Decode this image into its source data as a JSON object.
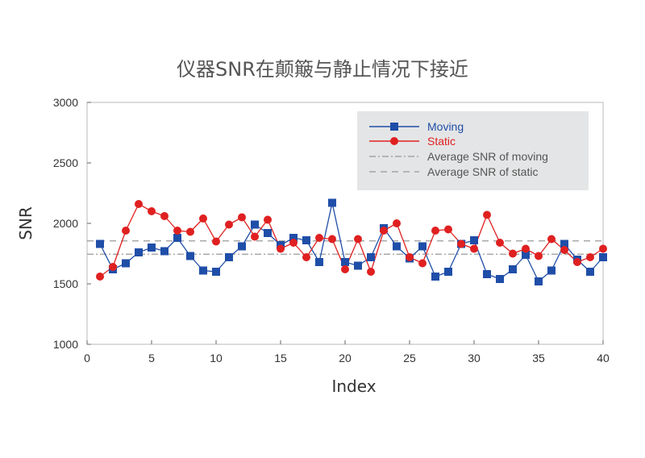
{
  "chart_data": {
    "type": "line",
    "title": "仪器SNR在颠簸与静止情况下接近",
    "xlabel": "Index",
    "ylabel": "SNR",
    "xlim": [
      0,
      40
    ],
    "ylim": [
      1000,
      3000
    ],
    "xticks": [
      0,
      5,
      10,
      15,
      20,
      25,
      30,
      35,
      40
    ],
    "yticks": [
      1000,
      1500,
      2000,
      2500,
      3000
    ],
    "x": [
      1,
      2,
      3,
      4,
      5,
      6,
      7,
      8,
      9,
      10,
      11,
      12,
      13,
      14,
      15,
      16,
      17,
      18,
      19,
      20,
      21,
      22,
      23,
      24,
      25,
      26,
      27,
      28,
      29,
      30,
      31,
      32,
      33,
      34,
      35,
      36,
      37,
      38,
      39,
      40
    ],
    "grid": false,
    "legend_position": "top-right",
    "series": [
      {
        "name": "Moving",
        "color": "#1f4ea8",
        "marker": "square",
        "values": [
          1830,
          1620,
          1670,
          1760,
          1800,
          1770,
          1880,
          1730,
          1610,
          1600,
          1720,
          1810,
          1990,
          1920,
          1820,
          1880,
          1860,
          1680,
          2170,
          1680,
          1650,
          1720,
          1960,
          1810,
          1710,
          1810,
          1560,
          1600,
          1830,
          1860,
          1580,
          1540,
          1620,
          1740,
          1520,
          1610,
          1830,
          1700,
          1600,
          1720
        ]
      },
      {
        "name": "Static",
        "color": "#e02020",
        "marker": "circle",
        "values": [
          1560,
          1640,
          1940,
          2160,
          2100,
          2060,
          1940,
          1930,
          2040,
          1850,
          1990,
          2050,
          1890,
          2030,
          1790,
          1840,
          1720,
          1880,
          1870,
          1620,
          1870,
          1600,
          1940,
          2000,
          1720,
          1670,
          1940,
          1950,
          1830,
          1790,
          2070,
          1840,
          1750,
          1790,
          1730,
          1870,
          1780,
          1680,
          1720,
          1790
        ]
      }
    ],
    "reference_lines": [
      {
        "name": "Average SNR of moving",
        "value": 1745,
        "color": "#999999",
        "dash": "dashdot"
      },
      {
        "name": "Average SNR of static",
        "value": 1855,
        "color": "#999999",
        "dash": "dash"
      }
    ]
  }
}
